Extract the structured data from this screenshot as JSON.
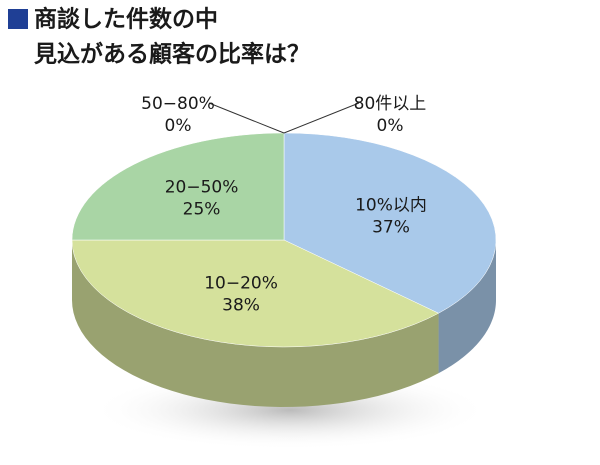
{
  "chart_data": {
    "type": "pie",
    "title": [
      "商談した件数の中",
      "見込がある顧客の比率は？"
    ],
    "categories": [
      "10%以内",
      "10−20%",
      "20−50%",
      "50−80%",
      "80件以上"
    ],
    "values": [
      37,
      38,
      25,
      0,
      0
    ],
    "value_labels": [
      "37%",
      "38%",
      "25%",
      "0%",
      "0%"
    ],
    "colors": [
      "#a9c9ea",
      "#d5e19c",
      "#a9d5a5",
      "#d8b0a0",
      "#c8b8d8"
    ],
    "start_angle": 0,
    "direction": "clockwise",
    "three_d": true
  }
}
